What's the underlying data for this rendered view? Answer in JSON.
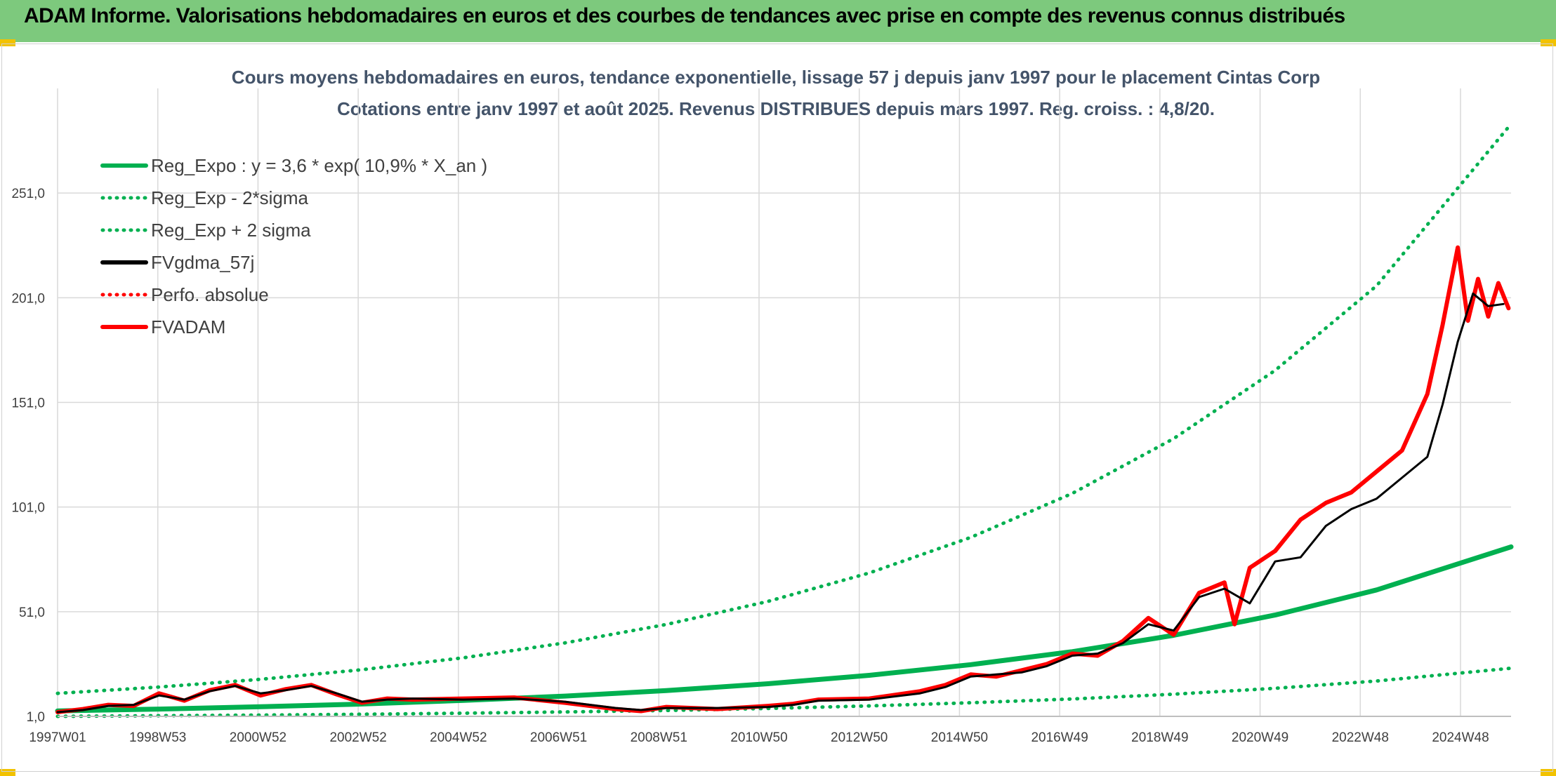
{
  "banner": {
    "title": "ADAM Informe. Valorisations hebdomadaires en euros et des courbes de tendances avec prise en compte des revenus connus distribués"
  },
  "colors": {
    "banner": "#7dc97d",
    "regression": "#00b050",
    "fv57": "#000000",
    "adam": "#ff0000",
    "grid": "#d9d9d9"
  },
  "chart_data": {
    "type": "line",
    "title": "Cours moyens hebdomadaires en euros, tendance exponentielle, lissage 57 j depuis janv 1997 pour le placement Cintas Corp",
    "subtitle": "Cotations entre janv 1997 et août 2025. Revenus DISTRIBUES depuis mars 1997. Reg. croiss. : 4,8/20.",
    "xlabel": "",
    "ylabel": "",
    "x_tick_labels": [
      "1997W01",
      "1998W53",
      "2000W52",
      "2002W52",
      "2004W52",
      "2006W51",
      "2008W51",
      "2010W50",
      "2012W50",
      "2014W50",
      "2016W49",
      "2018W49",
      "2020W49",
      "2022W48",
      "2024W48"
    ],
    "y_tick_labels": [
      "1,0",
      "51,0",
      "101,0",
      "151,0",
      "201,0",
      "251,0"
    ],
    "ylim": [
      1,
      301
    ],
    "xlim": [
      1997.0,
      2025.65
    ],
    "grid": true,
    "legend_position": "top-left",
    "legend": [
      {
        "label": "Reg_Expo : y = 3,6 * exp( 10,9% *  X_an )",
        "color": "#00b050",
        "style": "solid"
      },
      {
        "label": "Reg_Exp - 2*sigma",
        "color": "#00b050",
        "style": "dotted"
      },
      {
        "label": "Reg_Exp + 2 sigma",
        "color": "#00b050",
        "style": "dotted"
      },
      {
        "label": "FVgdma_57j",
        "color": "#000000",
        "style": "solid"
      },
      {
        "label": "Perfo. absolue",
        "color": "#ff0000",
        "style": "dotted"
      },
      {
        "label": "FVADAM",
        "color": "#ff0000",
        "style": "solid"
      }
    ],
    "series": [
      {
        "name": "Reg_Expo : y = 3,6 * exp( 10,9% *  X_an )",
        "x": [
          1997.0,
          1999.0,
          2001.0,
          2003.0,
          2005.0,
          2007.0,
          2009.0,
          2011.0,
          2013.0,
          2015.0,
          2017.0,
          2019.0,
          2021.0,
          2023.0,
          2025.65
        ],
        "y": [
          3.6,
          4.5,
          5.6,
          6.9,
          8.6,
          10.7,
          13.3,
          16.6,
          20.6,
          25.7,
          31.9,
          39.7,
          49.4,
          61.4,
          82.0
        ]
      },
      {
        "name": "Reg_Exp - 2*sigma",
        "x": [
          1997.0,
          1999.0,
          2001.0,
          2003.0,
          2005.0,
          2007.0,
          2009.0,
          2011.0,
          2013.0,
          2015.0,
          2017.0,
          2019.0,
          2021.0,
          2023.0,
          2025.65
        ],
        "y": [
          1.0,
          1.3,
          1.6,
          2.0,
          2.5,
          3.1,
          3.8,
          4.8,
          6.0,
          7.5,
          9.3,
          11.6,
          14.4,
          17.9,
          24.0
        ]
      },
      {
        "name": "Reg_Exp + 2 sigma",
        "x": [
          1997.0,
          1999.0,
          2001.0,
          2003.0,
          2005.0,
          2007.0,
          2009.0,
          2011.0,
          2013.0,
          2015.0,
          2017.0,
          2019.0,
          2021.0,
          2023.0,
          2025.65
        ],
        "y": [
          12.0,
          15.0,
          18.7,
          23.3,
          29.0,
          36.1,
          44.9,
          55.9,
          69.5,
          86.5,
          107.5,
          133.7,
          166.3,
          206.7,
          284.0
        ]
      },
      {
        "name": "FVgdma_57j",
        "x": [
          1997.0,
          1997.5,
          1998.0,
          1998.5,
          1999.0,
          1999.5,
          2000.0,
          2000.5,
          2001.0,
          2001.5,
          2002.0,
          2002.5,
          2003.0,
          2003.5,
          2004.0,
          2005.0,
          2006.0,
          2007.0,
          2008.0,
          2008.5,
          2009.0,
          2010.0,
          2011.0,
          2011.5,
          2012.0,
          2013.0,
          2014.0,
          2014.5,
          2015.0,
          2015.5,
          2016.0,
          2016.5,
          2017.0,
          2017.5,
          2018.0,
          2018.5,
          2019.0,
          2019.5,
          2020.0,
          2020.5,
          2021.0,
          2021.5,
          2022.0,
          2022.5,
          2023.0,
          2023.5,
          2024.0,
          2024.3,
          2024.6,
          2024.9,
          2025.2,
          2025.5
        ],
        "y": [
          3.0,
          4.0,
          6.0,
          6.5,
          11.0,
          9.0,
          13.0,
          15.5,
          12.0,
          13.5,
          15.5,
          12.0,
          8.0,
          9.0,
          9.5,
          9.0,
          9.5,
          8.0,
          5.0,
          4.0,
          5.0,
          5.0,
          5.5,
          6.5,
          8.5,
          9.0,
          12.0,
          15.0,
          20.0,
          21.0,
          22.0,
          25.0,
          30.0,
          31.0,
          36.0,
          45.0,
          42.0,
          58.0,
          62.0,
          55.0,
          75.0,
          77.0,
          92.0,
          100.0,
          105.0,
          115.0,
          125.0,
          150.0,
          180.0,
          203.0,
          197.0,
          198.0
        ]
      },
      {
        "name": "FVADAM",
        "x": [
          1997.0,
          1997.5,
          1998.0,
          1998.5,
          1999.0,
          1999.5,
          2000.0,
          2000.5,
          2001.0,
          2001.5,
          2002.0,
          2002.5,
          2003.0,
          2003.5,
          2004.0,
          2005.0,
          2006.0,
          2007.0,
          2008.0,
          2008.5,
          2009.0,
          2010.0,
          2011.0,
          2011.5,
          2012.0,
          2013.0,
          2014.0,
          2014.5,
          2015.0,
          2015.5,
          2016.0,
          2016.5,
          2017.0,
          2017.5,
          2018.0,
          2018.5,
          2019.0,
          2019.5,
          2020.0,
          2020.2,
          2020.5,
          2021.0,
          2021.5,
          2022.0,
          2022.5,
          2023.0,
          2023.5,
          2024.0,
          2024.3,
          2024.6,
          2024.8,
          2025.0,
          2025.2,
          2025.4,
          2025.6
        ],
        "y": [
          3.0,
          4.5,
          6.5,
          6.0,
          12.0,
          8.5,
          13.5,
          16.0,
          11.0,
          14.0,
          16.0,
          11.5,
          7.5,
          9.5,
          9.0,
          9.5,
          10.0,
          7.5,
          4.5,
          3.5,
          5.5,
          4.5,
          6.0,
          7.0,
          9.0,
          9.5,
          13.0,
          16.0,
          21.0,
          20.0,
          23.0,
          26.0,
          31.0,
          30.0,
          37.0,
          48.0,
          40.0,
          60.0,
          65.0,
          45.0,
          72.0,
          80.0,
          95.0,
          103.0,
          108.0,
          118.0,
          128.0,
          155.0,
          188.0,
          225.0,
          190.0,
          210.0,
          192.0,
          208.0,
          196.0
        ]
      }
    ]
  }
}
